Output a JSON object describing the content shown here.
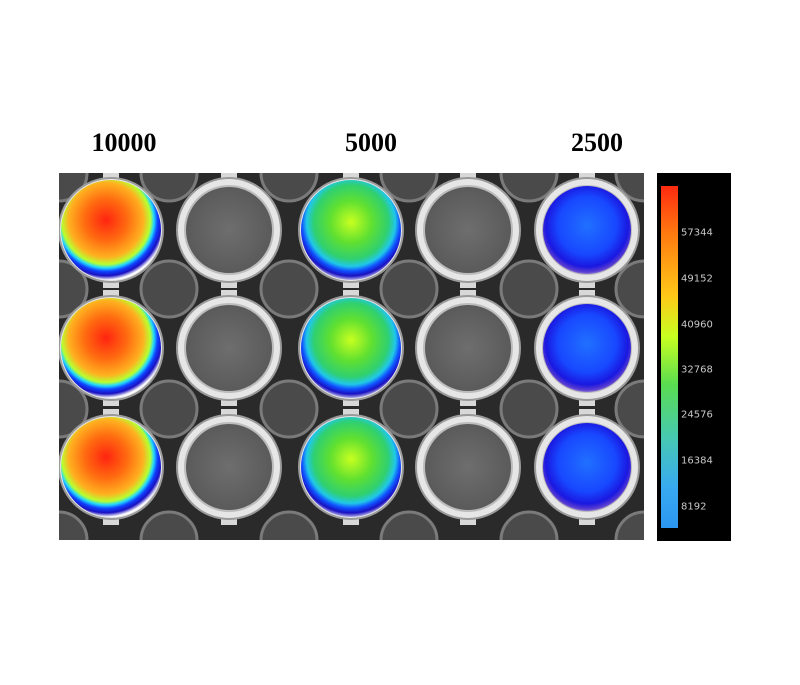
{
  "columns": [
    {
      "label": "10000"
    },
    {
      "label": "5000"
    },
    {
      "label": "2500"
    }
  ],
  "colorbar": {
    "ticks": [
      "57344",
      "49152",
      "40960",
      "32768",
      "24576",
      "16384",
      "8192"
    ],
    "colors": [
      "#ff2a10",
      "#ff7a10",
      "#ffc818",
      "#c8ff20",
      "#5adc50",
      "#46c8b4",
      "#38aaf0",
      "#2c96f0"
    ]
  },
  "plate": {
    "rows": 3,
    "well_columns": 5,
    "wells": [
      {
        "row": 1,
        "col": 1,
        "signal": "high"
      },
      {
        "row": 1,
        "col": 2,
        "signal": "none"
      },
      {
        "row": 1,
        "col": 3,
        "signal": "medium"
      },
      {
        "row": 1,
        "col": 4,
        "signal": "none"
      },
      {
        "row": 1,
        "col": 5,
        "signal": "low"
      },
      {
        "row": 2,
        "col": 1,
        "signal": "high"
      },
      {
        "row": 2,
        "col": 2,
        "signal": "none"
      },
      {
        "row": 2,
        "col": 3,
        "signal": "medium"
      },
      {
        "row": 2,
        "col": 4,
        "signal": "none"
      },
      {
        "row": 2,
        "col": 5,
        "signal": "low"
      },
      {
        "row": 3,
        "col": 1,
        "signal": "high"
      },
      {
        "row": 3,
        "col": 2,
        "signal": "none"
      },
      {
        "row": 3,
        "col": 3,
        "signal": "medium"
      },
      {
        "row": 3,
        "col": 4,
        "signal": "none"
      },
      {
        "row": 3,
        "col": 5,
        "signal": "low"
      }
    ]
  }
}
